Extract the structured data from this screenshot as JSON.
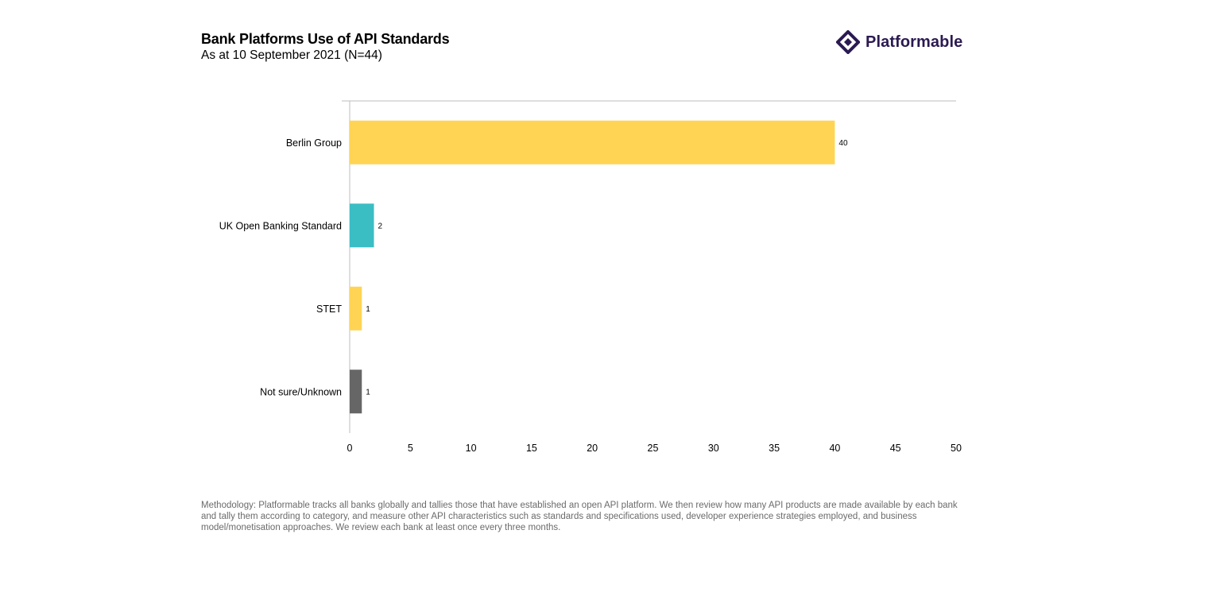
{
  "header": {
    "title": "Bank Platforms Use of API Standards",
    "subtitle": "As at 10 September 2021 (N=44)",
    "logo_text": "Platformable",
    "logo_icon": "diamond-logo-icon"
  },
  "colors": {
    "yellow": "#FFD454",
    "teal": "#3BBDC4",
    "gray": "#666666",
    "brand": "#2B1A52"
  },
  "chart_data": {
    "type": "bar",
    "orientation": "horizontal",
    "title": "Bank Platforms Use of API Standards",
    "subtitle": "As at 10 September 2021 (N=44)",
    "categories": [
      "Berlin Group",
      "UK Open Banking Standard",
      "STET",
      "Not sure/Unknown"
    ],
    "values": [
      40,
      2,
      1,
      1
    ],
    "bar_colors": [
      "#FFD454",
      "#3BBDC4",
      "#FFD454",
      "#666666"
    ],
    "data_labels": [
      "40",
      "2",
      "1",
      "1"
    ],
    "xlim": [
      0,
      50
    ],
    "x_ticks": [
      0,
      5,
      10,
      15,
      20,
      25,
      30,
      35,
      40,
      45,
      50
    ],
    "xlabel": "",
    "ylabel": "",
    "grid": false,
    "legend": "none"
  },
  "footer": {
    "methodology": "Methodology: Platformable tracks all banks globally and tallies those that have established an open API platform. We then review how many API products are made available by each bank and tally them according to category, and measure other API characteristics such as standards and specifications used, developer experience strategies employed, and business model/monetisation approaches. We review each bank at least once every three months."
  }
}
